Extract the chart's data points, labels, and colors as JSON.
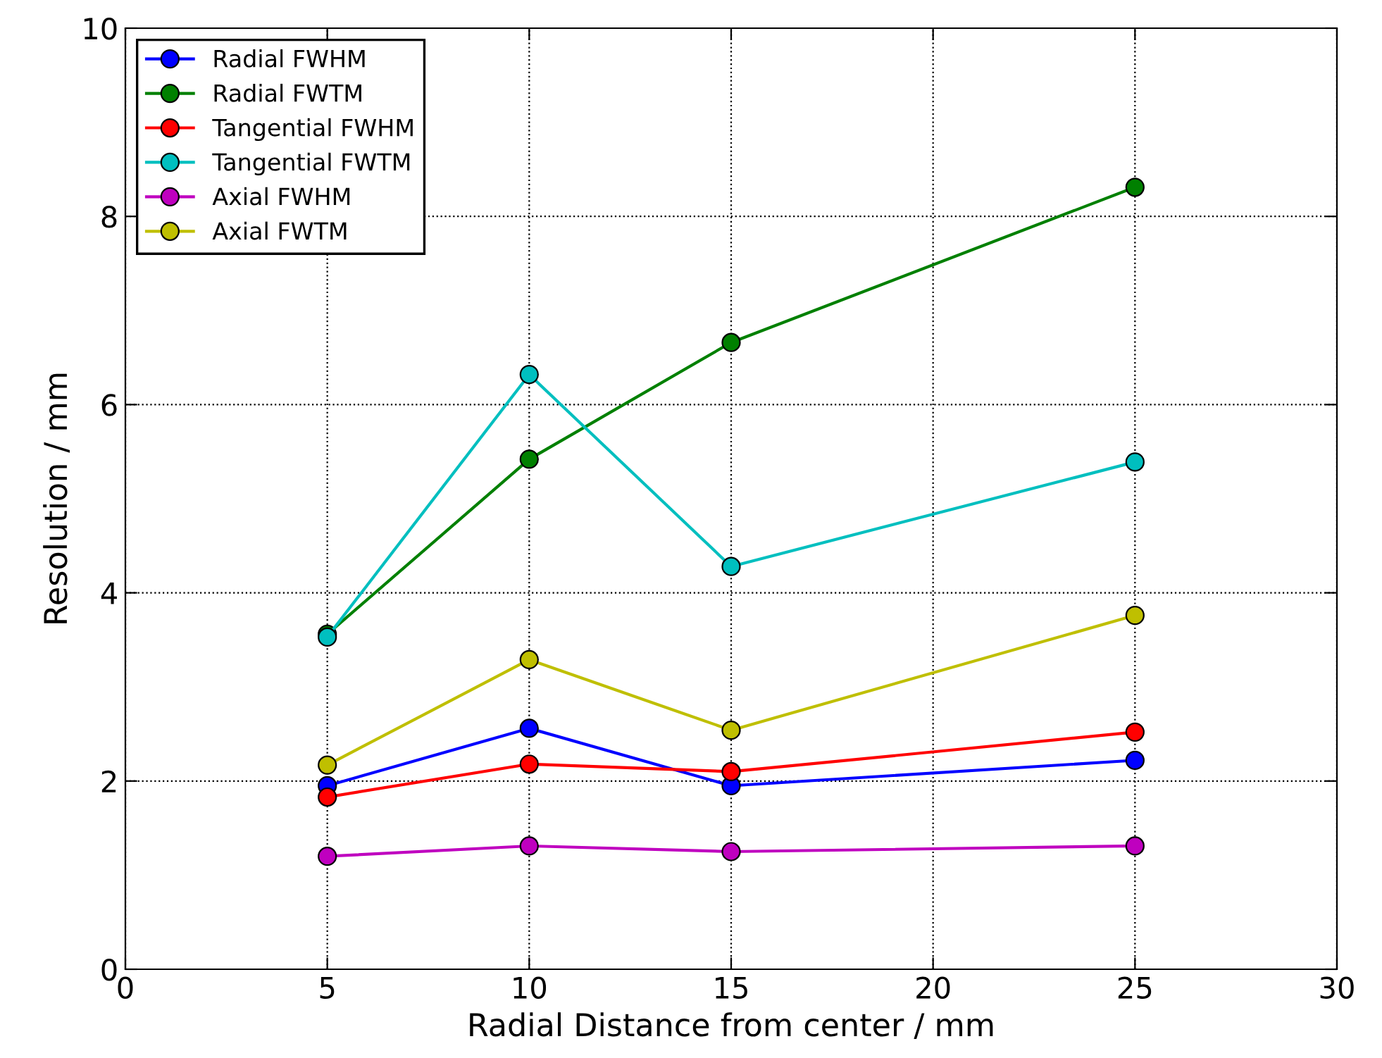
{
  "chart_data": {
    "type": "line",
    "xlabel": "Radial Distance from center / mm",
    "ylabel": "Resolution / mm",
    "x": [
      5,
      10,
      15,
      25
    ],
    "series": [
      {
        "name": "Radial FWHM",
        "color": "#0000ff",
        "values": [
          1.95,
          2.56,
          1.95,
          2.22
        ]
      },
      {
        "name": "Radial FWTM",
        "color": "#008000",
        "values": [
          3.56,
          5.42,
          6.66,
          8.31
        ]
      },
      {
        "name": "Tangential FWHM",
        "color": "#ff0000",
        "values": [
          1.83,
          2.18,
          2.1,
          2.52
        ]
      },
      {
        "name": "Tangential FWTM",
        "color": "#00bfbf",
        "values": [
          3.53,
          6.32,
          4.28,
          5.39
        ]
      },
      {
        "name": "Axial FWHM",
        "color": "#bf00bf",
        "values": [
          1.2,
          1.31,
          1.25,
          1.31
        ]
      },
      {
        "name": "Axial FWTM",
        "color": "#bfbf00",
        "values": [
          2.17,
          3.29,
          2.54,
          3.76
        ]
      }
    ],
    "xlim": [
      0,
      30
    ],
    "xticks": [
      0,
      5,
      10,
      15,
      20,
      25,
      30
    ],
    "ylim": [
      0,
      10
    ],
    "yticks": [
      0,
      2,
      4,
      6,
      8,
      10
    ],
    "grid": true,
    "legend": "top left",
    "marker": "circle",
    "line_style": "solid"
  }
}
